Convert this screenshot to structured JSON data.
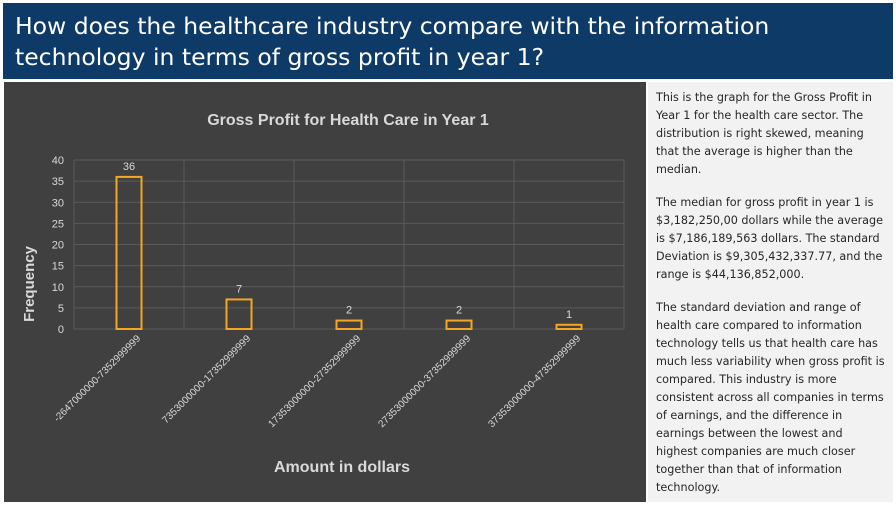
{
  "page_title": "How does the healthcare industry compare with the information technology in terms of gross profit in year 1?",
  "description": [
    "This is the graph for the Gross Profit in Year 1 for the health care sector. The distribution is right skewed, meaning that the average is higher than the median.",
    "The median for gross profit in year 1 is $3,182,250,00 dollars while the average is $7,186,189,563 dollars. The standard Deviation is $9,305,432,337.77, and the range is $44,136,852,000.",
    "The standard deviation and range of health care compared to information technology tells us that health care has much less variability when gross profit is compared. This industry is more consistent across all companies in terms of earnings, and the difference in earnings between the lowest and highest companies are much closer together than that of information technology."
  ],
  "chart_data": {
    "type": "bar",
    "title": "Gross Profit for Health Care in Year 1",
    "xlabel": "Amount in dollars",
    "ylabel": "Frequency",
    "categories": [
      "-2647000000-7352999999",
      "7353000000-17352999999",
      "17353000000-27352999999",
      "27353000000-37352999999",
      "37353000000-47352999999"
    ],
    "values": [
      36,
      7,
      2,
      2,
      1
    ],
    "ylim": [
      0,
      40
    ],
    "yticks": [
      0,
      5,
      10,
      15,
      20,
      25,
      30,
      35,
      40
    ],
    "grid": true,
    "legend": "none",
    "colors": {
      "bar_outline": "#f5a623",
      "background": "#404040",
      "text": "#d9d9d9"
    }
  }
}
